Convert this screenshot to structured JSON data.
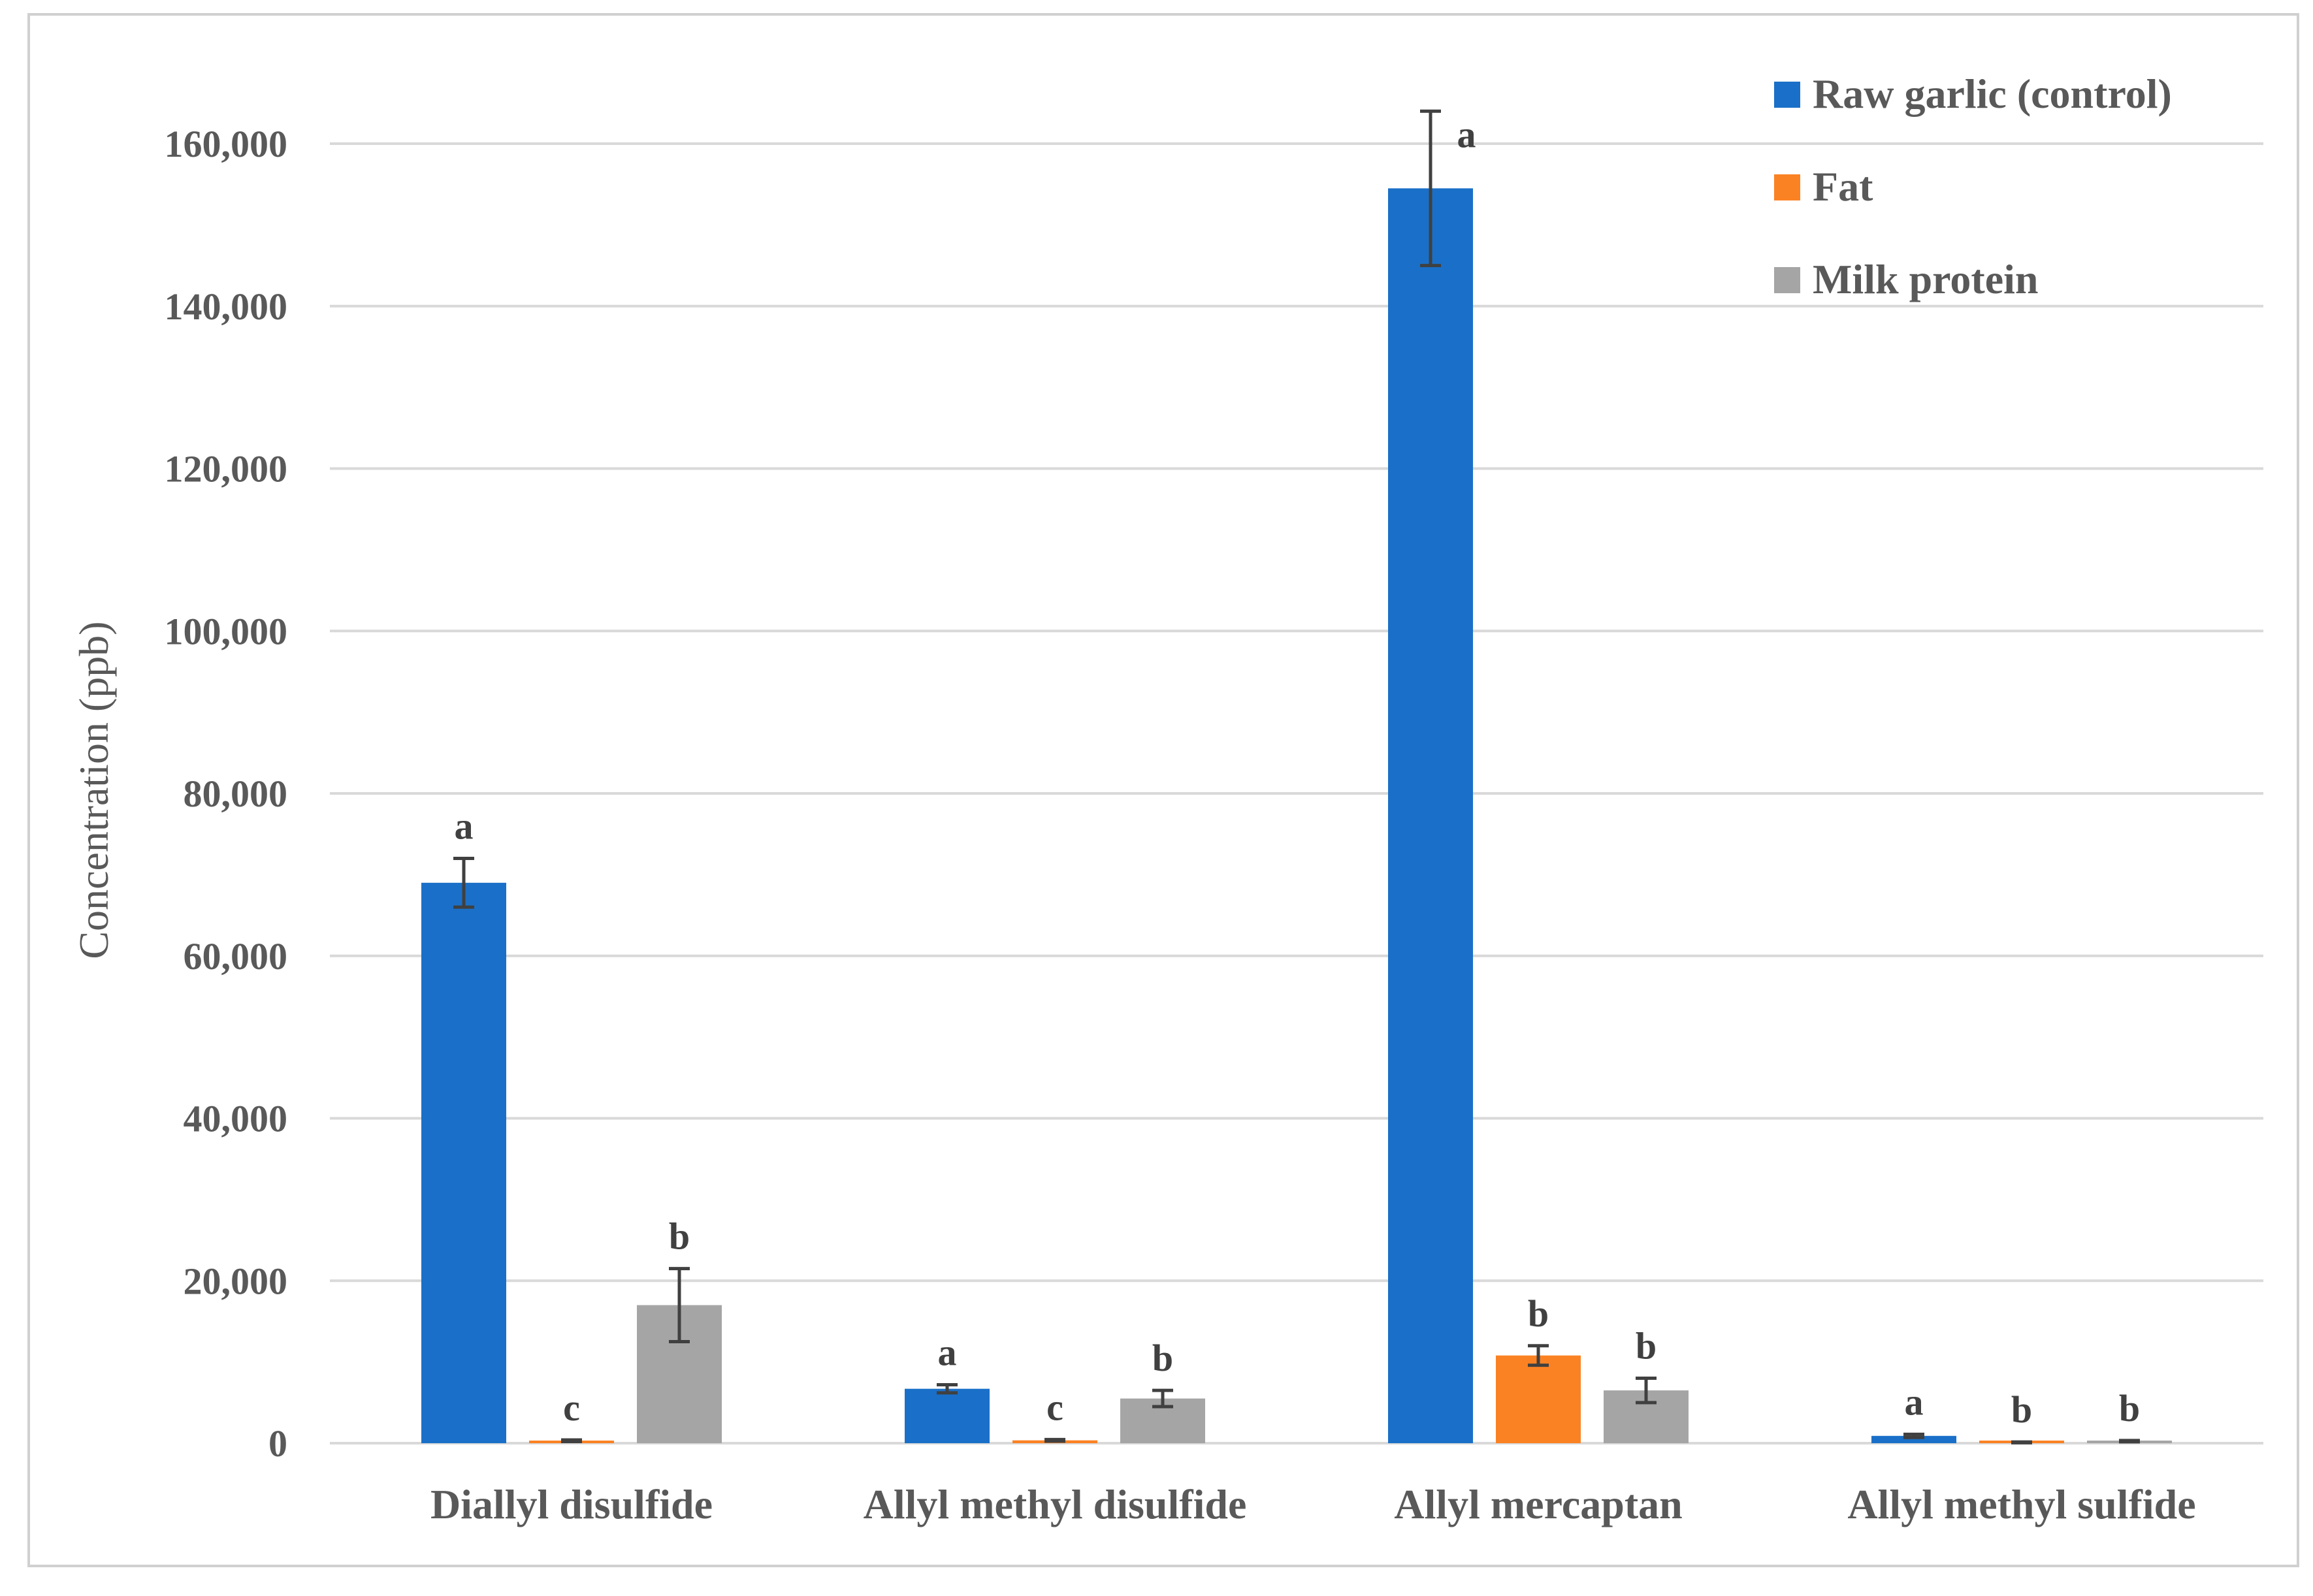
{
  "chart_data": {
    "type": "bar",
    "title": "",
    "xlabel": "",
    "ylabel": "Concentration (ppb)",
    "ylim": [
      0,
      160000
    ],
    "yticks": [
      0,
      20000,
      40000,
      60000,
      80000,
      100000,
      120000,
      140000,
      160000
    ],
    "ytick_labels": [
      "0",
      "20,000",
      "40,000",
      "60,000",
      "80,000",
      "100,000",
      "120,000",
      "140,000",
      "160,000"
    ],
    "grid": true,
    "legend_position": "top-right",
    "categories": [
      "Diallyl disulfide",
      "Allyl methyl disulfide",
      "Allyl mercaptan",
      "Allyl methyl sulfide"
    ],
    "series": [
      {
        "name": "Raw garlic (control)",
        "color": "#1a70c8",
        "values": [
          69000,
          6700,
          154500,
          900
        ],
        "errors": [
          3000,
          500,
          9500,
          200
        ],
        "letters": [
          "a",
          "a",
          "a",
          "a"
        ]
      },
      {
        "name": "Fat",
        "color": "#fb8223",
        "values": [
          300,
          350,
          10800,
          100
        ],
        "errors": [
          100,
          100,
          1200,
          50
        ],
        "letters": [
          "c",
          "c",
          "b",
          "b"
        ]
      },
      {
        "name": "Milk protein",
        "color": "#a5a5a5",
        "values": [
          17000,
          5500,
          6500,
          250
        ],
        "errors": [
          4500,
          1000,
          1500,
          80
        ],
        "letters": [
          "b",
          "b",
          "b",
          "b"
        ]
      }
    ]
  }
}
